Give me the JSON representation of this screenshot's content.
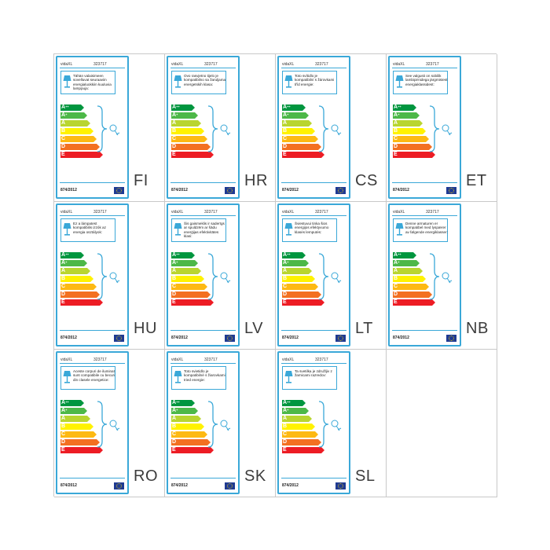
{
  "sheet": {
    "labels": [
      {
        "lang": "FI",
        "brand": "vidaXL",
        "model": "323717",
        "text": "Tähän valaisimeen sovelluvat seuraaviin energialuokkiin kuuluvia lamppuja:",
        "regulation": "874/2012"
      },
      {
        "lang": "HR",
        "brand": "vidaXL",
        "model": "323717",
        "text": "Ovo rasvjetno tijelo je kompatibilno sa žaruljama energetskih klasa:",
        "regulation": "874/2012"
      },
      {
        "lang": "CS",
        "brand": "vidaXL",
        "model": "323717",
        "text": "Toto svítidlo je kompatibilní s žárovkami tříd energie:",
        "regulation": "874/2012"
      },
      {
        "lang": "ET",
        "brand": "vidaXL",
        "model": "323717",
        "text": "See valgusti on sobilik lambipirnidega järgmistest energiaklassidest:",
        "regulation": "874/2012"
      },
      {
        "lang": "HU",
        "brand": "vidaXL",
        "model": "323717",
        "text": "Ez a lámpatest kompatibilis izzók az energia osztályok:",
        "regulation": "874/2012"
      },
      {
        "lang": "LV",
        "brand": "vidaXL",
        "model": "323717",
        "text": "Šis gaismeklis ir saderīgs ar spuldzēm ar šādu enerģijas efektivitātes klasi:",
        "regulation": "874/2012"
      },
      {
        "lang": "LT",
        "brand": "vidaXL",
        "model": "323717",
        "text": "Šviestuvui tinka šios energijos efektyvumo klasės lemputės:",
        "regulation": "874/2012"
      },
      {
        "lang": "NB",
        "brand": "vidaXL",
        "model": "323717",
        "text": "Denne armaturen er kompatibel med lyspærer av følgende energiklasser:",
        "regulation": "874/2012"
      },
      {
        "lang": "RO",
        "brand": "vidaXL",
        "model": "323717",
        "text": "Aceste corpuri de iluminat sunt compatibile cu becuri din clasele energetice:",
        "regulation": "874/2012"
      },
      {
        "lang": "SK",
        "brand": "vidaXL",
        "model": "323717",
        "text": "Toto svietidlo je kompatibilné s žiarovkami tried energie:",
        "regulation": "874/2012"
      },
      {
        "lang": "SL",
        "brand": "vidaXL",
        "model": "323717",
        "text": "Ta svetilka je združljiv z žarnicami razredov:",
        "regulation": "874/2012"
      }
    ],
    "classes": [
      {
        "letter": "A",
        "sup": "++",
        "color": "#00963f"
      },
      {
        "letter": "A",
        "sup": "+",
        "color": "#4db848"
      },
      {
        "letter": "A",
        "sup": "",
        "color": "#b9d530"
      },
      {
        "letter": "B",
        "sup": "",
        "color": "#fff200"
      },
      {
        "letter": "C",
        "sup": "",
        "color": "#fdb913"
      },
      {
        "letter": "D",
        "sup": "",
        "color": "#f37021"
      },
      {
        "letter": "E",
        "sup": "",
        "color": "#ed1c24"
      }
    ],
    "accent_color": "#3aa8d8",
    "lamp_icon": "table-lamp-icon",
    "brace_icon": "curly-brace-bulb-icon",
    "flag_icon": "eu-flag-icon"
  }
}
